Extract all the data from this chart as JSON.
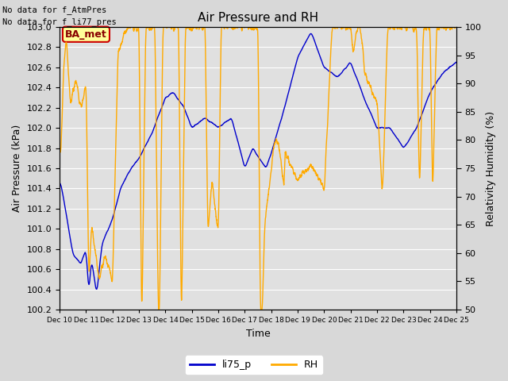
{
  "title": "Air Pressure and RH",
  "text_top_left": [
    "No data for f_AtmPres",
    "No data for f_li77_pres"
  ],
  "annotation_box": "BA_met",
  "xlabel": "Time",
  "ylabel_left": "Air Pressure (kPa)",
  "ylabel_right": "Relativity Humidity (%)",
  "xlim": [
    0,
    15.0
  ],
  "ylim_left": [
    100.2,
    103.0
  ],
  "ylim_right": [
    50,
    100
  ],
  "yticks_left": [
    100.2,
    100.4,
    100.6,
    100.8,
    101.0,
    101.2,
    101.4,
    101.6,
    101.8,
    102.0,
    102.2,
    102.4,
    102.6,
    102.8,
    103.0
  ],
  "yticks_right": [
    50,
    55,
    60,
    65,
    70,
    75,
    80,
    85,
    90,
    95,
    100
  ],
  "xtick_labels": [
    "Dec 10",
    "Dec 11",
    "Dec 12",
    "Dec 13",
    "Dec 14",
    "Dec 15",
    "Dec 16",
    "Dec 17",
    "Dec 18",
    "Dec 19",
    "Dec 20",
    "Dec 21",
    "Dec 22",
    "Dec 23",
    "Dec 24",
    "Dec 25"
  ],
  "xtick_positions": [
    0,
    1,
    2,
    3,
    4,
    5,
    6,
    7,
    8,
    9,
    10,
    11,
    12,
    13,
    14,
    15
  ],
  "line_li75p_color": "#0000cc",
  "line_rh_color": "#ffaa00",
  "legend_labels": [
    "li75_p",
    "RH"
  ],
  "bg_color": "#d8d8d8",
  "plot_bg_color": "#e0e0e0",
  "grid_color": "#ffffff",
  "annotation_box_facecolor": "#ffff99",
  "annotation_box_edgecolor": "#cc0000",
  "annotation_box_textcolor": "#880000",
  "title_fontsize": 11,
  "axis_label_fontsize": 9,
  "tick_fontsize": 8
}
